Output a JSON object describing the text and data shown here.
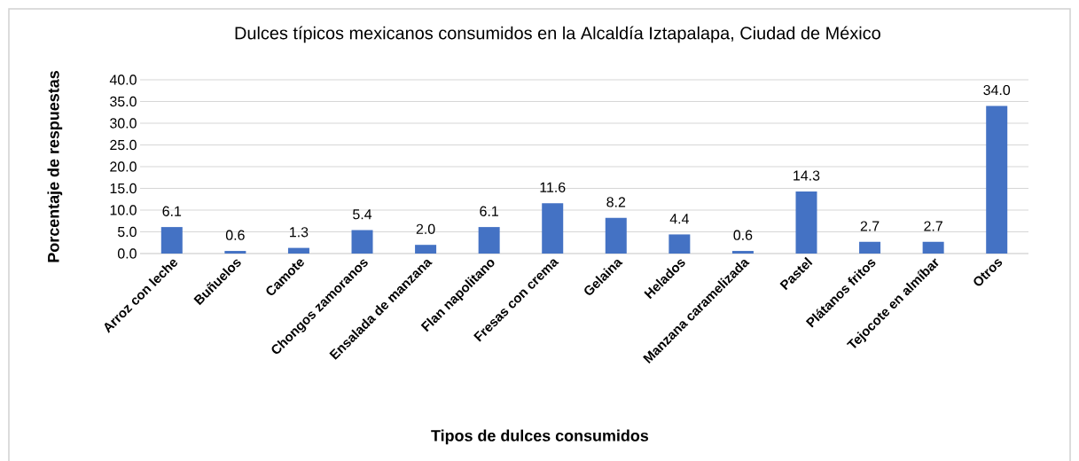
{
  "chart_data": {
    "type": "bar",
    "title": "Dulces típicos mexicanos consumidos en la Alcaldía Iztapalapa, Ciudad de México",
    "xlabel": "Tipos de dulces consumidos",
    "ylabel": "Porcentaje de respuestas",
    "categories": [
      "Arroz con leche",
      "Buñuelos",
      "Camote",
      "Chongos zamoranos",
      "Ensalada de manzana",
      "Flan napolitano",
      "Fresas con crema",
      "Gelaina",
      "Helados",
      "Manzana caramelizada",
      "Pastel",
      "Plátanos fritos",
      "Tejocote en almíbar",
      "Otros"
    ],
    "values": [
      6.1,
      0.6,
      1.3,
      5.4,
      2.0,
      6.1,
      11.6,
      8.2,
      4.4,
      0.6,
      14.3,
      2.7,
      2.7,
      34.0
    ],
    "value_labels": [
      "6.1",
      "0.6",
      "1.3",
      "5.4",
      "2.0",
      "6.1",
      "11.6",
      "8.2",
      "4.4",
      "0.6",
      "14.3",
      "2.7",
      "2.7",
      "34.0"
    ],
    "color": "#4472c4",
    "ylim": [
      0,
      40
    ],
    "yticks": [
      {
        "value": 0,
        "label": "0.0"
      },
      {
        "value": 5,
        "label": "5.0"
      },
      {
        "value": 10,
        "label": "10.0"
      },
      {
        "value": 15,
        "label": "15.0"
      },
      {
        "value": 20,
        "label": "20.0"
      },
      {
        "value": 25,
        "label": "25.0"
      },
      {
        "value": 30,
        "label": "30.0"
      },
      {
        "value": 35,
        "label": "35.0"
      },
      {
        "value": 40,
        "label": "40.0"
      }
    ],
    "grid": "y"
  }
}
